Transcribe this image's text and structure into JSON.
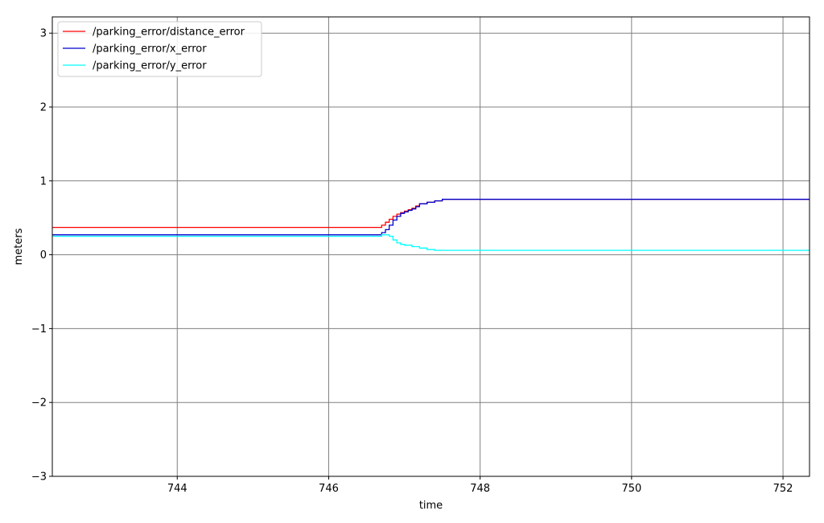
{
  "chart_data": {
    "type": "line",
    "title": "",
    "xlabel": "time",
    "ylabel": "meters",
    "xlim": [
      742.35,
      752.35
    ],
    "ylim": [
      -3,
      3.22
    ],
    "x_ticks": [
      744,
      746,
      748,
      750,
      752
    ],
    "y_ticks": [
      -3,
      -2,
      -1,
      0,
      1,
      2,
      3
    ],
    "x_tick_labels": [
      "744",
      "746",
      "748",
      "750",
      "752"
    ],
    "y_tick_labels": [
      "−3",
      "−2",
      "−1",
      "0",
      "1",
      "2",
      "3"
    ],
    "grid": true,
    "legend_position": "top-left",
    "series": [
      {
        "name": "/parking_error/distance_error",
        "color": "#ff0000",
        "x": [
          742.35,
          746.6,
          746.7,
          746.75,
          746.8,
          746.85,
          746.9,
          746.95,
          747.0,
          747.05,
          747.1,
          747.15,
          747.2,
          747.3,
          747.4,
          747.5,
          747.6,
          752.35
        ],
        "y": [
          0.37,
          0.37,
          0.4,
          0.44,
          0.48,
          0.52,
          0.55,
          0.57,
          0.59,
          0.61,
          0.63,
          0.66,
          0.69,
          0.71,
          0.73,
          0.75,
          0.75,
          0.75
        ]
      },
      {
        "name": "/parking_error/x_error",
        "color": "#0000cc",
        "x": [
          742.35,
          746.6,
          746.7,
          746.75,
          746.8,
          746.85,
          746.9,
          746.95,
          747.0,
          747.05,
          747.1,
          747.15,
          747.2,
          747.3,
          747.4,
          747.5,
          747.6,
          752.35
        ],
        "y": [
          0.27,
          0.27,
          0.3,
          0.34,
          0.4,
          0.47,
          0.52,
          0.56,
          0.58,
          0.6,
          0.62,
          0.65,
          0.69,
          0.71,
          0.73,
          0.75,
          0.75,
          0.75
        ]
      },
      {
        "name": "/parking_error/y_error",
        "color": "#00ffff",
        "x": [
          742.35,
          746.6,
          746.7,
          746.75,
          746.8,
          746.85,
          746.9,
          746.95,
          747.0,
          747.1,
          747.2,
          747.3,
          747.4,
          752.35
        ],
        "y": [
          0.25,
          0.25,
          0.27,
          0.27,
          0.25,
          0.2,
          0.16,
          0.14,
          0.13,
          0.11,
          0.09,
          0.07,
          0.06,
          0.06
        ]
      }
    ]
  }
}
